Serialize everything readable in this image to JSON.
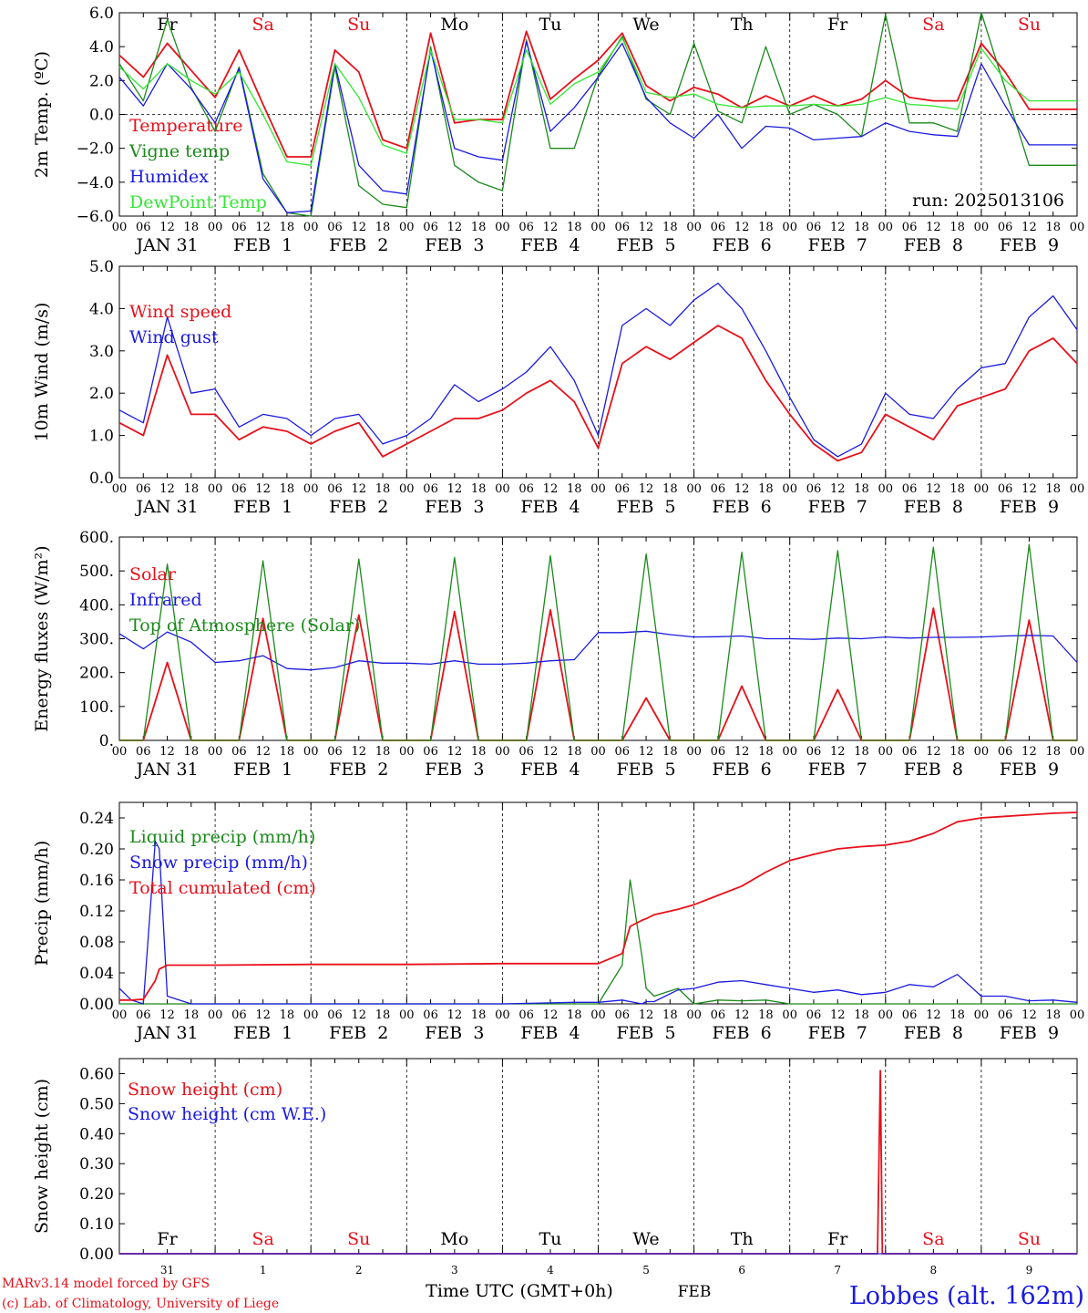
{
  "run_label": "run: 2025013106",
  "credit_line1": "MARv3.14 model forced by GFS",
  "credit_line2": "(c) Lab. of Climatology, University of Liege",
  "location": "Lobbes (alt. 162m)",
  "time_axis_title": "Time UTC (GMT+0h)",
  "month_label": "FEB",
  "colors": {
    "red": "#e8101a",
    "green": "#1a8a1a",
    "blue": "#1a1ae0",
    "lightgreen": "#33e633",
    "black": "#000000"
  },
  "hour_ticks": [
    "00",
    "06",
    "12",
    "18"
  ],
  "day_labels": [
    "JAN 31",
    "FEB  1",
    "FEB  2",
    "FEB  3",
    "FEB  4",
    "FEB  5",
    "FEB  6",
    "FEB  7",
    "FEB  8",
    "FEB  9"
  ],
  "weekdays": [
    {
      "label": "Fr",
      "weekend": false
    },
    {
      "label": "Sa",
      "weekend": true
    },
    {
      "label": "Su",
      "weekend": true
    },
    {
      "label": "Mo",
      "weekend": false
    },
    {
      "label": "Tu",
      "weekend": false
    },
    {
      "label": "We",
      "weekend": false
    },
    {
      "label": "Th",
      "weekend": false
    },
    {
      "label": "Fr",
      "weekend": false
    },
    {
      "label": "Sa",
      "weekend": true
    },
    {
      "label": "Su",
      "weekend": true
    }
  ],
  "day_numbers": [
    "31",
    "1",
    "2",
    "3",
    "4",
    "5",
    "6",
    "7",
    "8",
    "9"
  ],
  "chart_data": [
    {
      "type": "line",
      "id": "temperature",
      "ylabel": "2m Temp. (ºC)",
      "ylim": [
        -6,
        6
      ],
      "yticks": [
        "6.0",
        "4.0",
        "2.0",
        "0.0",
        "−2.0",
        "−4.0",
        "−6.0"
      ],
      "ytick_values": [
        6,
        4,
        2,
        0,
        -2,
        -4,
        -6
      ],
      "zero_line": true,
      "x_hours": [
        0,
        6,
        12,
        18,
        24,
        30,
        36,
        42,
        48,
        54,
        60,
        66,
        72,
        78,
        84,
        90,
        96,
        102,
        108,
        114,
        120,
        126,
        132,
        138,
        144,
        150,
        156,
        162,
        168,
        174,
        180,
        186,
        192,
        198,
        204,
        210,
        216,
        222,
        228,
        234,
        240
      ],
      "series": [
        {
          "name": "Temperature",
          "color": "red",
          "values": [
            3.5,
            2.2,
            4.2,
            2.6,
            1.0,
            3.8,
            0.6,
            -2.5,
            -2.5,
            3.8,
            2.5,
            -1.5,
            -2.0,
            4.8,
            -0.5,
            -0.3,
            -0.3,
            4.9,
            0.9,
            2.1,
            3.2,
            4.8,
            1.7,
            0.8,
            1.6,
            1.2,
            0.4,
            1.1,
            0.5,
            1.1,
            0.5,
            0.9,
            2.0,
            1.0,
            0.8,
            0.8,
            4.2,
            2.5,
            0.3,
            0.3,
            0.3
          ]
        },
        {
          "name": "Vigne temp",
          "color": "green",
          "values": [
            3.0,
            0.8,
            5.6,
            1.6,
            -1.0,
            2.8,
            -3.5,
            -5.8,
            -6.0,
            2.8,
            -4.2,
            -5.3,
            -5.5,
            4.0,
            -3.0,
            -4.0,
            -4.5,
            4.4,
            -2.0,
            -2.0,
            2.3,
            4.6,
            0.9,
            0.0,
            4.2,
            0.2,
            -0.5,
            4.0,
            0.0,
            0.6,
            0.0,
            -1.3,
            5.9,
            -0.5,
            -0.5,
            -1.0,
            6.0,
            1.5,
            -3.0,
            -3.0,
            -3.0
          ]
        },
        {
          "name": "Humidex",
          "color": "blue",
          "values": [
            2.2,
            0.5,
            3.0,
            1.5,
            -0.5,
            2.7,
            -3.8,
            -5.8,
            -5.7,
            3.0,
            -3.0,
            -4.5,
            -4.7,
            3.8,
            -2.0,
            -2.5,
            -2.7,
            4.3,
            -1.0,
            0.4,
            2.2,
            4.2,
            1.0,
            -0.5,
            -1.4,
            0.0,
            -2.0,
            -0.7,
            -0.8,
            -1.5,
            -1.4,
            -1.3,
            -0.5,
            -1.0,
            -1.2,
            -1.3,
            3.0,
            0.5,
            -1.8,
            -1.8,
            -1.8
          ]
        },
        {
          "name": "DewPoint Temp",
          "color": "lightgreen",
          "values": [
            2.8,
            1.5,
            3.0,
            2.0,
            1.2,
            2.5,
            0.0,
            -2.8,
            -3.0,
            3.0,
            1.0,
            -1.8,
            -2.3,
            3.8,
            -0.3,
            -0.3,
            -0.5,
            3.8,
            0.6,
            1.8,
            2.5,
            4.5,
            1.3,
            1.0,
            1.2,
            0.6,
            0.4,
            0.5,
            0.5,
            0.6,
            0.5,
            0.6,
            1.0,
            0.6,
            0.5,
            0.3,
            3.9,
            2.0,
            0.8,
            0.8,
            0.8
          ]
        }
      ]
    },
    {
      "type": "line",
      "id": "wind",
      "ylabel": "10m Wind (m/s)",
      "ylim": [
        0,
        5
      ],
      "yticks": [
        "5.0",
        "4.0",
        "3.0",
        "2.0",
        "1.0",
        "0.0"
      ],
      "ytick_values": [
        5,
        4,
        3,
        2,
        1,
        0
      ],
      "x_hours": [
        0,
        6,
        12,
        18,
        24,
        30,
        36,
        42,
        48,
        54,
        60,
        66,
        72,
        78,
        84,
        90,
        96,
        102,
        108,
        114,
        120,
        126,
        132,
        138,
        144,
        150,
        156,
        162,
        168,
        174,
        180,
        186,
        192,
        198,
        204,
        210,
        216,
        222,
        228,
        234,
        240
      ],
      "series": [
        {
          "name": "Wind speed",
          "color": "red",
          "values": [
            1.3,
            1.0,
            2.9,
            1.5,
            1.5,
            0.9,
            1.2,
            1.1,
            0.8,
            1.1,
            1.3,
            0.5,
            0.8,
            1.1,
            1.4,
            1.4,
            1.6,
            2.0,
            2.3,
            1.8,
            0.7,
            2.7,
            3.1,
            2.8,
            3.2,
            3.6,
            3.3,
            2.3,
            1.5,
            0.8,
            0.4,
            0.6,
            1.5,
            1.2,
            0.9,
            1.7,
            1.9,
            2.1,
            3.0,
            3.3,
            2.7
          ]
        },
        {
          "name": "Wind gust",
          "color": "blue",
          "values": [
            1.6,
            1.3,
            3.8,
            2.0,
            2.1,
            1.2,
            1.5,
            1.4,
            1.0,
            1.4,
            1.5,
            0.8,
            1.0,
            1.4,
            2.2,
            1.8,
            2.1,
            2.5,
            3.1,
            2.3,
            1.0,
            3.6,
            4.0,
            3.6,
            4.2,
            4.6,
            4.0,
            3.0,
            1.9,
            0.9,
            0.5,
            0.8,
            2.0,
            1.5,
            1.4,
            2.1,
            2.6,
            2.7,
            3.8,
            4.3,
            3.5
          ]
        }
      ]
    },
    {
      "type": "line",
      "id": "energy",
      "ylabel": "Energy fluxes (W/m²)",
      "ylim": [
        0,
        600
      ],
      "yticks": [
        "600.",
        "500.",
        "400.",
        "300.",
        "200.",
        "100.",
        "0."
      ],
      "ytick_values": [
        600,
        500,
        400,
        300,
        200,
        100,
        0
      ],
      "x_hours": [
        0,
        6,
        12,
        18,
        24,
        30,
        36,
        42,
        48,
        54,
        60,
        66,
        72,
        78,
        84,
        90,
        96,
        102,
        108,
        114,
        120,
        126,
        132,
        138,
        144,
        150,
        156,
        162,
        168,
        174,
        180,
        186,
        192,
        198,
        204,
        210,
        216,
        222,
        228,
        234,
        240
      ],
      "series": [
        {
          "name": "Solar",
          "color": "red",
          "values": [
            0,
            0,
            230,
            0,
            0,
            0,
            360,
            0,
            0,
            0,
            370,
            0,
            0,
            0,
            380,
            0,
            0,
            0,
            385,
            0,
            0,
            0,
            125,
            0,
            0,
            0,
            160,
            0,
            0,
            0,
            150,
            0,
            0,
            0,
            390,
            0,
            0,
            0,
            355,
            0,
            0
          ]
        },
        {
          "name": "Infrared",
          "color": "blue",
          "values": [
            315,
            270,
            320,
            290,
            230,
            235,
            250,
            212,
            208,
            215,
            235,
            228,
            228,
            225,
            235,
            225,
            225,
            228,
            235,
            238,
            318,
            318,
            322,
            312,
            305,
            306,
            308,
            300,
            300,
            298,
            302,
            300,
            305,
            302,
            304,
            304,
            305,
            308,
            310,
            308,
            230
          ]
        },
        {
          "name": "Top of Atmosphere (Solar)",
          "color": "green",
          "values": [
            0,
            0,
            520,
            0,
            0,
            0,
            530,
            0,
            0,
            0,
            535,
            0,
            0,
            0,
            540,
            0,
            0,
            0,
            545,
            0,
            0,
            0,
            550,
            0,
            0,
            0,
            555,
            0,
            0,
            0,
            560,
            0,
            0,
            0,
            570,
            0,
            0,
            0,
            578,
            0,
            0
          ]
        }
      ]
    },
    {
      "type": "line",
      "id": "precip",
      "ylabel": "Precip (mm/h)",
      "ylim": [
        0,
        0.26
      ],
      "yticks": [
        "0.24",
        "0.20",
        "0.16",
        "0.12",
        "0.08",
        "0.04",
        "0.00"
      ],
      "ytick_values": [
        0.24,
        0.2,
        0.16,
        0.12,
        0.08,
        0.04,
        0.0
      ],
      "x_hours": [
        0,
        3,
        6,
        9,
        10,
        12,
        18,
        24,
        48,
        72,
        96,
        114,
        120,
        126,
        128,
        131,
        132,
        134,
        140,
        144,
        150,
        156,
        162,
        168,
        174,
        180,
        186,
        192,
        198,
        204,
        210,
        216,
        222,
        228,
        234,
        240
      ],
      "series": [
        {
          "name": "Liquid precip (mm/h)",
          "color": "green",
          "values": [
            0,
            0,
            0,
            0,
            0,
            0,
            0,
            0,
            0,
            0,
            0,
            0,
            0,
            0.05,
            0.16,
            0.06,
            0.02,
            0.01,
            0.02,
            0,
            0.005,
            0.004,
            0.005,
            0,
            0,
            0,
            0,
            0,
            0,
            0,
            0,
            0,
            0,
            0,
            0,
            0
          ]
        },
        {
          "name": "Snow precip (mm/h)",
          "color": "blue",
          "values": [
            0.02,
            0.005,
            0,
            0.21,
            0.2,
            0.01,
            0,
            0,
            0,
            0,
            0,
            0.002,
            0.002,
            0.005,
            0.003,
            0,
            0.003,
            0.003,
            0.018,
            0.02,
            0.028,
            0.03,
            0.025,
            0.02,
            0.015,
            0.018,
            0.012,
            0.015,
            0.025,
            0.022,
            0.038,
            0.01,
            0.01,
            0.004,
            0.005,
            0.002
          ]
        },
        {
          "name": "Total cumulated (cm)",
          "color": "red",
          "values": [
            0.005,
            0.005,
            0.006,
            0.03,
            0.045,
            0.05,
            0.05,
            0.05,
            0.051,
            0.051,
            0.052,
            0.052,
            0.052,
            0.065,
            0.1,
            0.108,
            0.11,
            0.115,
            0.122,
            0.128,
            0.14,
            0.152,
            0.17,
            0.185,
            0.193,
            0.2,
            0.203,
            0.205,
            0.21,
            0.22,
            0.235,
            0.24,
            0.242,
            0.244,
            0.246,
            0.247
          ]
        }
      ]
    },
    {
      "type": "line",
      "id": "snow",
      "ylabel": "Snow height (cm)",
      "ylim": [
        0,
        0.65
      ],
      "yticks": [
        "0.60",
        "0.50",
        "0.40",
        "0.30",
        "0.20",
        "0.10",
        "0.00"
      ],
      "ytick_values": [
        0.6,
        0.5,
        0.4,
        0.3,
        0.2,
        0.1,
        0.0
      ],
      "x_hours": [
        0,
        189,
        190,
        190.7,
        191.2,
        192,
        240
      ],
      "series": [
        {
          "name": "Snow height (cm)",
          "color": "red",
          "values": [
            0,
            0,
            0,
            0.61,
            0,
            0,
            0
          ]
        },
        {
          "name": "Snow height (cm W.E.)",
          "color": "blue",
          "values": [
            0,
            0,
            0,
            0,
            0,
            0,
            0
          ]
        }
      ]
    }
  ]
}
